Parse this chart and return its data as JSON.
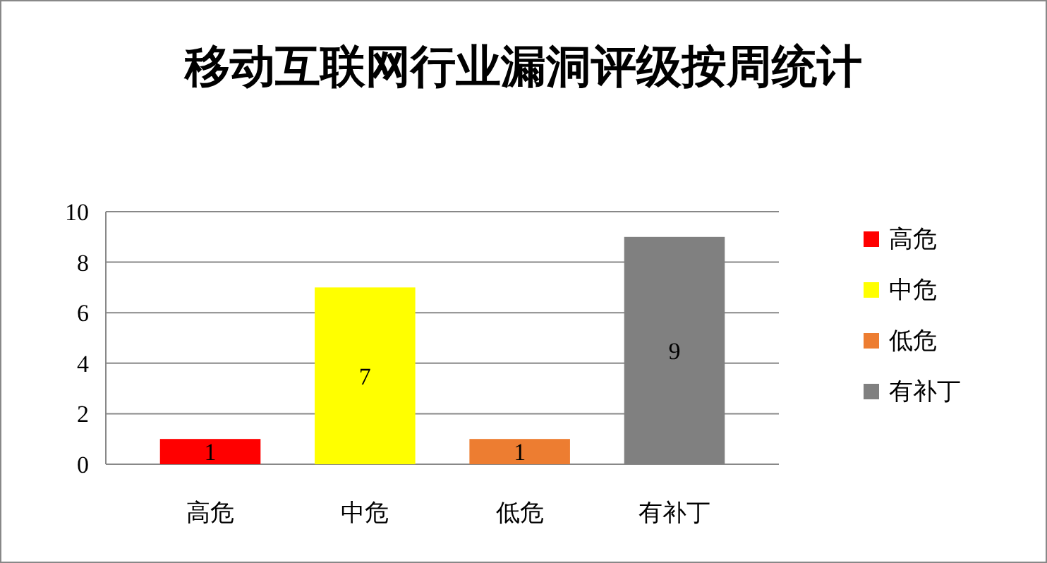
{
  "chart_data": {
    "type": "bar",
    "title": "移动互联网行业漏洞评级按周统计",
    "categories": [
      "高危",
      "中危",
      "低危",
      "有补丁"
    ],
    "series": [
      {
        "name": "高危",
        "color": "#ff0000",
        "values": [
          1,
          null,
          null,
          null
        ]
      },
      {
        "name": "中危",
        "color": "#ffff00",
        "values": [
          null,
          7,
          null,
          null
        ]
      },
      {
        "name": "低危",
        "color": "#ed7d31",
        "values": [
          null,
          null,
          1,
          null
        ]
      },
      {
        "name": "有补丁",
        "color": "#808080",
        "values": [
          null,
          null,
          null,
          9
        ]
      }
    ],
    "ylim": [
      0,
      10
    ],
    "yticks": [
      0,
      2,
      4,
      6,
      8,
      10
    ],
    "grid": "y",
    "legend": "right",
    "data_labels": true
  }
}
